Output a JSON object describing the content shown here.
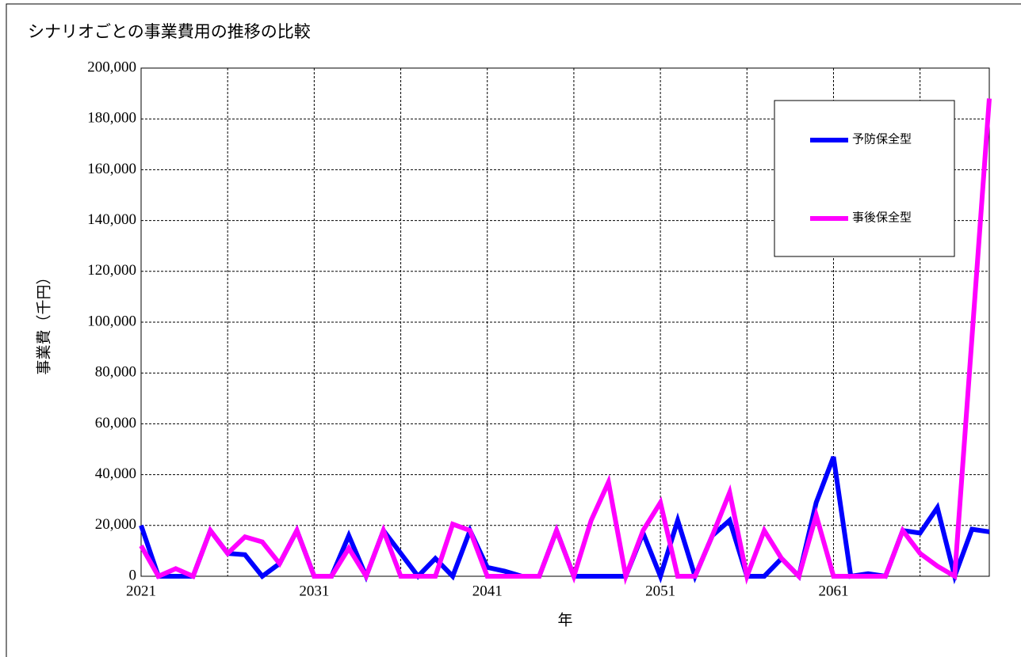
{
  "chart_data": {
    "type": "line",
    "title": "シナリオごとの事業費用の推移の比較",
    "x_label": "年",
    "y_label": "事業費（千円）",
    "x": [
      2021,
      2022,
      2023,
      2024,
      2025,
      2026,
      2027,
      2028,
      2029,
      2030,
      2031,
      2032,
      2033,
      2034,
      2035,
      2036,
      2037,
      2038,
      2039,
      2040,
      2041,
      2042,
      2043,
      2044,
      2045,
      2046,
      2047,
      2048,
      2049,
      2050,
      2051,
      2052,
      2053,
      2054,
      2055,
      2056,
      2057,
      2058,
      2059,
      2060,
      2061,
      2062,
      2063,
      2064,
      2065,
      2066,
      2067,
      2068,
      2069,
      2070
    ],
    "series": [
      {
        "name": "予防保全型",
        "color": "#0000ff",
        "values": [
          20000,
          0,
          0,
          0,
          18000,
          9000,
          8500,
          0,
          5000,
          18000,
          0,
          0,
          16000,
          0,
          18000,
          9000,
          0,
          7000,
          0,
          18000,
          3500,
          2000,
          0,
          0,
          18000,
          0,
          0,
          0,
          0,
          17000,
          0,
          22000,
          0,
          16000,
          22000,
          0,
          0,
          7000,
          0,
          29000,
          47000,
          0,
          1000,
          0,
          18000,
          17000,
          27000,
          0,
          18500,
          17500
        ]
      },
      {
        "name": "事後保全型",
        "color": "#ff00ff",
        "values": [
          12000,
          0,
          3000,
          0,
          18000,
          9000,
          15500,
          13500,
          5000,
          18000,
          0,
          0,
          11000,
          0,
          18000,
          0,
          0,
          0,
          20500,
          18000,
          0,
          0,
          0,
          0,
          18000,
          0,
          22000,
          37000,
          0,
          18000,
          29000,
          0,
          0,
          16000,
          33000,
          0,
          18000,
          7000,
          0,
          24000,
          0,
          0,
          0,
          0,
          18000,
          9000,
          4000,
          0,
          94000,
          188000
        ]
      }
    ],
    "xlim": [
      2021,
      2070
    ],
    "xticks": [
      2021,
      2031,
      2041,
      2051,
      2061
    ],
    "xminor": [
      2026,
      2036,
      2046,
      2056,
      2066
    ],
    "ylim": [
      0,
      200000
    ],
    "yticks": [
      0,
      {
        "value": 20000,
        "label": "20,000"
      },
      {
        "value": 40000,
        "label": "40,000"
      },
      {
        "value": 60000,
        "label": "60,000"
      },
      {
        "value": 80000,
        "label": "80,000"
      },
      {
        "value": 100000,
        "label": "100,000"
      },
      {
        "value": 120000,
        "label": "120,000"
      },
      {
        "value": 140000,
        "label": "140,000"
      },
      {
        "value": 160000,
        "label": "160,000"
      },
      {
        "value": 180000,
        "label": "180,000"
      },
      {
        "value": 200000,
        "label": "200,000"
      }
    ],
    "grid": true
  }
}
